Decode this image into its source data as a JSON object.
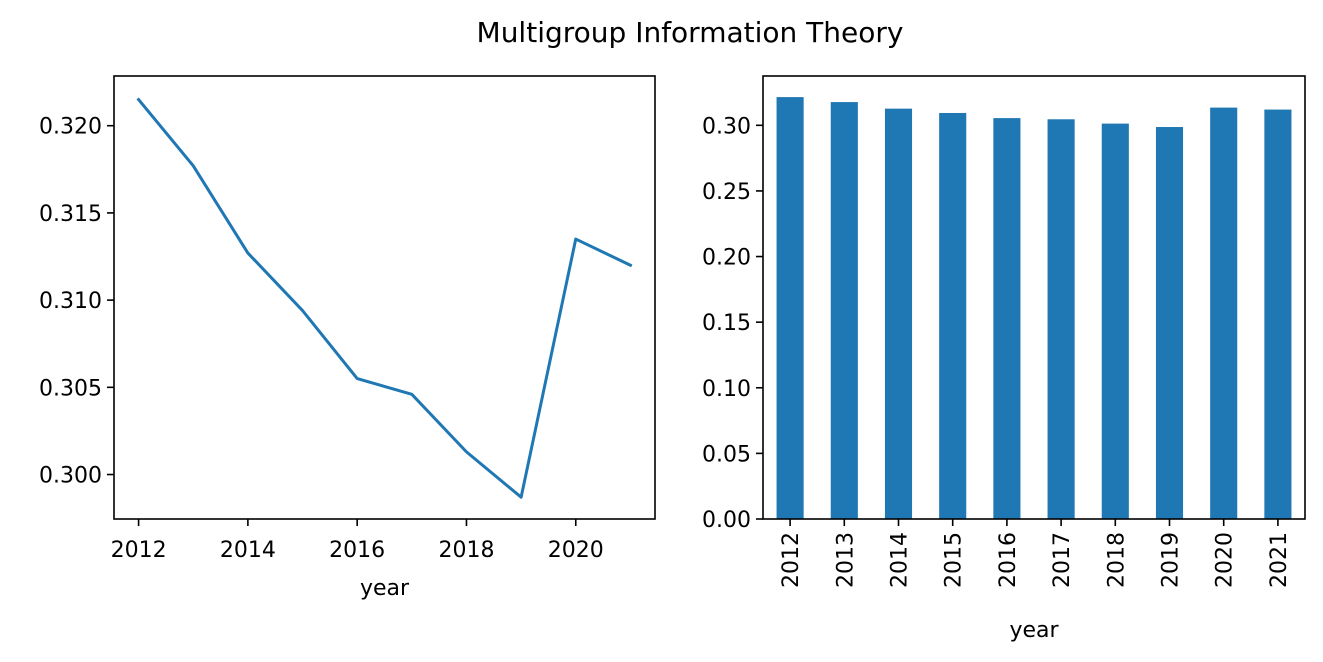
{
  "figure": {
    "title": "Multigroup Information Theory"
  },
  "chart_data": [
    {
      "type": "line",
      "xlabel": "year",
      "ylabel": "",
      "x": [
        2012,
        2013,
        2014,
        2015,
        2016,
        2017,
        2018,
        2019,
        2020,
        2021
      ],
      "series": [
        {
          "values": [
            0.3215,
            0.3177,
            0.3127,
            0.3094,
            0.3055,
            0.3046,
            0.3013,
            0.2987,
            0.3135,
            0.312
          ],
          "color": "#1f77b4"
        }
      ],
      "xlim": [
        2011.55,
        2021.45
      ],
      "ylim": [
        0.29745,
        0.32285
      ],
      "xticks": [
        2012,
        2014,
        2016,
        2018,
        2020
      ],
      "xtick_labels": [
        "2012",
        "2014",
        "2016",
        "2018",
        "2020"
      ],
      "yticks": [
        0.3,
        0.305,
        0.31,
        0.315,
        0.32
      ],
      "ytick_labels": [
        "0.300",
        "0.305",
        "0.310",
        "0.315",
        "0.320"
      ],
      "grid": false
    },
    {
      "type": "bar",
      "xlabel": "year",
      "ylabel": "",
      "categories": [
        "2012",
        "2013",
        "2014",
        "2015",
        "2016",
        "2017",
        "2018",
        "2019",
        "2020",
        "2021"
      ],
      "series": [
        {
          "values": [
            0.3215,
            0.3177,
            0.3127,
            0.3094,
            0.3055,
            0.3046,
            0.3013,
            0.2987,
            0.3135,
            0.312
          ],
          "color": "#1f77b4"
        }
      ],
      "ylim": [
        0,
        0.33758
      ],
      "yticks": [
        0.0,
        0.05,
        0.1,
        0.15,
        0.2,
        0.25,
        0.3
      ],
      "ytick_labels": [
        "0.00",
        "0.05",
        "0.10",
        "0.15",
        "0.20",
        "0.25",
        "0.30"
      ],
      "xtick_rotation": 90,
      "grid": false
    }
  ]
}
